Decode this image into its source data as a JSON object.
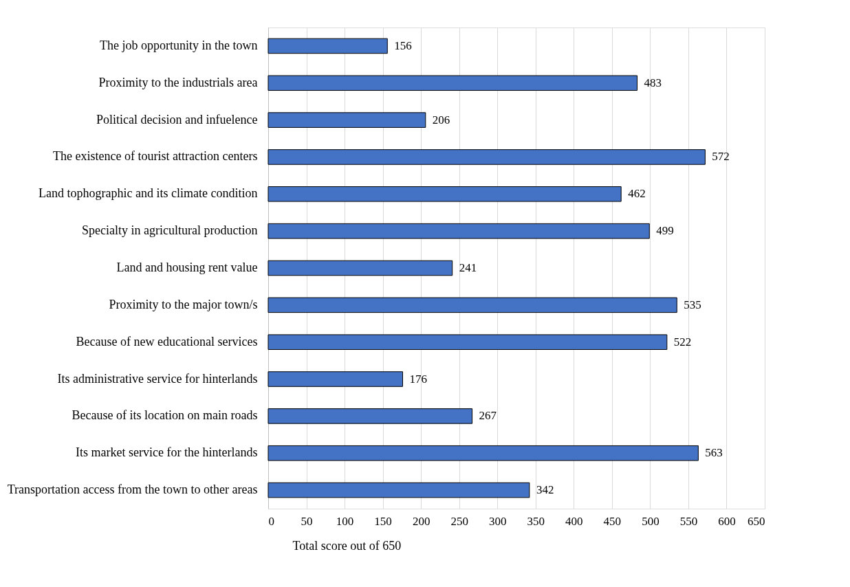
{
  "chart_data": {
    "type": "bar",
    "orientation": "horizontal",
    "xlabel": "Total score out of 650",
    "categories": [
      "The job opportunity in the town",
      "Proximity to the industrials area",
      "Political decision and infuelence",
      "The existence of tourist attraction centers",
      "Land tophographic and its climate condition",
      "Specialty in agricultural production",
      "Land and housing rent value",
      "Proximity to the major town/s",
      "Because of new educational services",
      "Its administrative service for hinterlands",
      "Because of its location on main roads",
      "Its market service for the hinterlands",
      "Transportation access from the town to other areas"
    ],
    "values": [
      156,
      483,
      206,
      572,
      462,
      499,
      241,
      535,
      522,
      176,
      267,
      563,
      342
    ],
    "color": "#4472c4",
    "xlim": [
      0,
      650
    ],
    "xticks": [
      0,
      50,
      100,
      150,
      200,
      250,
      300,
      350,
      400,
      450,
      500,
      550,
      600,
      650
    ],
    "grid": "x",
    "data_labels": true
  }
}
